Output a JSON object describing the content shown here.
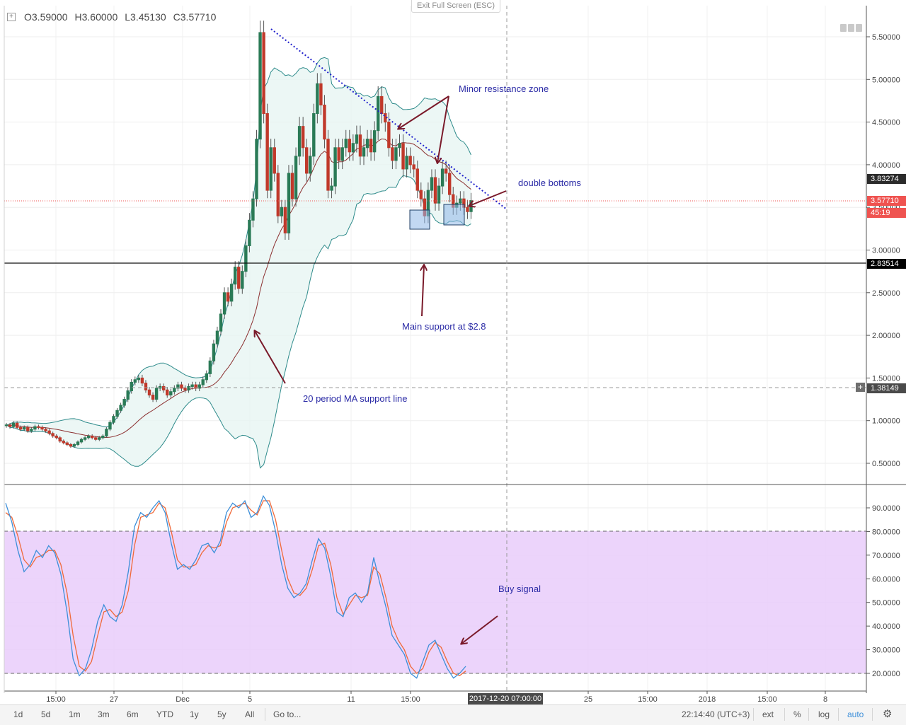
{
  "legend": {
    "open_label": "O",
    "open": "3.59000",
    "high_label": "H",
    "high": "3.60000",
    "low_label": "L",
    "low": "3.45130",
    "close_label": "C",
    "close": "3.57710"
  },
  "exit_fullscreen": "Exit Full Screen (ESC)",
  "price_axis": {
    "ticks": [
      "5.50000",
      "5.00000",
      "4.50000",
      "4.00000",
      "3.50000",
      "3.00000",
      "2.50000",
      "2.00000",
      "1.50000",
      "1.00000",
      "0.50000"
    ],
    "tags": {
      "upper_band": "3.83274",
      "last_price": "3.57710",
      "countdown": "45:19",
      "support": "2.83514",
      "crosshair": "1.38149"
    }
  },
  "stoch_axis": {
    "ticks": [
      "90.0000",
      "80.0000",
      "70.0000",
      "60.0000",
      "50.0000",
      "40.0000",
      "30.0000",
      "20.0000"
    ]
  },
  "time_axis": {
    "labels": [
      "15:00",
      "27",
      "Dec",
      "5",
      "11",
      "15:00",
      "25",
      "15:00",
      "2018",
      "15:00",
      "8"
    ],
    "crosshair": "2017-12-20 07:00:00"
  },
  "annotations": {
    "minor_resistance": "Minor resistance zone",
    "double_bottoms": "double bottoms",
    "main_support": "Main support at $2.8",
    "ma_support": "20 period MA support line",
    "buy_signal": "Buy signal"
  },
  "toolbar": {
    "ranges": [
      "1d",
      "5d",
      "1m",
      "3m",
      "6m",
      "YTD",
      "1y",
      "5y",
      "All"
    ],
    "goto": "Go to...",
    "clock": "22:14:40 (UTC+3)",
    "ext": "ext",
    "percent": "%",
    "log": "log",
    "auto": "auto",
    "settings_icon": "gear-icon"
  },
  "colors": {
    "bull": "#26a69a",
    "bear": "#ef5350",
    "band": "#2e8b8b",
    "ma": "#8b2f2f",
    "stoch_k": "#3d8fd9",
    "stoch_d": "#f06a3a",
    "stoch_zone": "#e9cdfa",
    "trendline": "#2222cc",
    "arrow": "#7a1a2a",
    "support_tag": "#000000",
    "last_tag": "#ef5350"
  },
  "chart_data": {
    "type": "candlestick",
    "price_range": [
      0.18,
      5.85
    ],
    "support_level": 2.83514,
    "last_close": 3.5771,
    "stoch_range": [
      0,
      100
    ],
    "stoch_overbought": 80,
    "stoch_oversold": 20,
    "closes": [
      0.95,
      0.93,
      0.97,
      0.92,
      0.9,
      0.92,
      0.88,
      0.9,
      0.93,
      0.92,
      0.9,
      0.88,
      0.85,
      0.82,
      0.8,
      0.76,
      0.74,
      0.72,
      0.7,
      0.72,
      0.75,
      0.78,
      0.8,
      0.82,
      0.8,
      0.78,
      0.8,
      0.82,
      0.9,
      0.98,
      1.05,
      1.12,
      1.18,
      1.25,
      1.35,
      1.45,
      1.48,
      1.5,
      1.44,
      1.36,
      1.3,
      1.25,
      1.38,
      1.4,
      1.36,
      1.3,
      1.34,
      1.38,
      1.42,
      1.38,
      1.36,
      1.4,
      1.42,
      1.38,
      1.42,
      1.48,
      1.55,
      1.7,
      1.9,
      2.05,
      2.25,
      2.5,
      2.4,
      2.6,
      2.8,
      2.55,
      2.75,
      3.05,
      3.35,
      3.6,
      4.3,
      5.55,
      4.6,
      3.7,
      4.2,
      3.9,
      3.4,
      3.5,
      3.2,
      3.9,
      3.6,
      4.1,
      4.45,
      4.2,
      3.9,
      4.1,
      4.6,
      4.95,
      4.7,
      4.3,
      3.7,
      3.75,
      4.2,
      4.05,
      4.2,
      4.3,
      4.15,
      4.25,
      4.35,
      4.1,
      4.2,
      4.3,
      4.15,
      4.4,
      4.8,
      4.6,
      4.5,
      4.2,
      4.05,
      4.2,
      4.25,
      3.95,
      4.1,
      4.0,
      3.95,
      3.7,
      3.6,
      3.4,
      3.7,
      3.85,
      3.55,
      3.75,
      3.95,
      3.9,
      3.65,
      3.5,
      3.55,
      3.6,
      3.5,
      3.45,
      3.58
    ],
    "stoch_k": [
      92,
      84,
      72,
      63,
      66,
      72,
      69,
      74,
      71,
      62,
      46,
      26,
      19,
      22,
      30,
      42,
      49,
      44,
      42,
      49,
      63,
      82,
      88,
      86,
      90,
      93,
      88,
      75,
      64,
      66,
      64,
      68,
      74,
      75,
      71,
      76,
      88,
      92,
      90,
      93,
      86,
      88,
      95,
      91,
      80,
      66,
      56,
      52,
      54,
      58,
      68,
      77,
      73,
      61,
      46,
      44,
      52,
      54,
      50,
      54,
      69,
      58,
      48,
      36,
      32,
      28,
      20,
      18,
      25,
      32,
      34,
      28,
      22,
      18,
      20,
      23
    ],
    "stoch_d": [
      88,
      86,
      78,
      68,
      65,
      69,
      70,
      72,
      72,
      66,
      54,
      36,
      23,
      21,
      25,
      36,
      46,
      47,
      44,
      46,
      55,
      74,
      86,
      87,
      88,
      92,
      90,
      80,
      68,
      65,
      65,
      66,
      71,
      74,
      73,
      74,
      84,
      90,
      91,
      92,
      89,
      87,
      93,
      93,
      85,
      72,
      60,
      54,
      53,
      56,
      64,
      74,
      75,
      66,
      52,
      45,
      49,
      53,
      52,
      53,
      65,
      62,
      52,
      40,
      34,
      30,
      23,
      20,
      22,
      29,
      33,
      31,
      25,
      20,
      19,
      21
    ]
  }
}
